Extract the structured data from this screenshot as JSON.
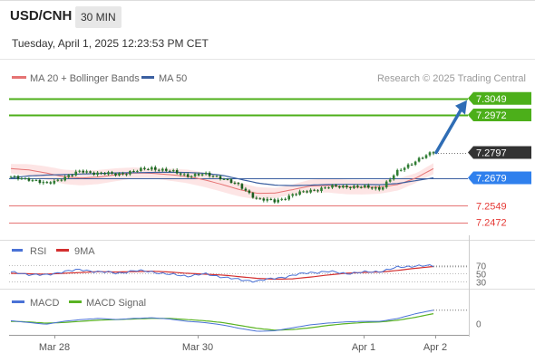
{
  "header": {
    "symbol": "USD/CNH",
    "timeframe": "30 MIN",
    "timestamp": "Tuesday, April 1, 2025 12:23:53 PM CET"
  },
  "legend": {
    "ma20_bb": "MA 20 + Bollinger Bands",
    "ma50": "MA 50",
    "source": "Research © 2025 Trading Central",
    "rsi": "RSI",
    "rsi_ma": "9MA",
    "macd": "MACD",
    "macd_signal": "MACD Signal"
  },
  "colors": {
    "candle": "#2e7d32",
    "ma20": "#e57373",
    "bb_fill": "#fde2e2",
    "ma50": "#3b5fa0",
    "resistance": "#4caf1a",
    "support": "#e57373",
    "current": "#333333",
    "ma50_label": "#2f80ed",
    "forecast": "#2f6db5",
    "rsi": "#4a72d6",
    "rsi_ma": "#d32f2f",
    "macd": "#4a72d6",
    "macd_signal": "#5ab323"
  },
  "chart_data": [
    {
      "type": "candlestick",
      "title": "USD/CNH",
      "x_ticks": [
        "Mar 28",
        "Mar 30",
        "Apr 1",
        "Apr 2"
      ],
      "ylim": [
        7.2445,
        7.3065
      ],
      "series": [
        {
          "name": "MA 20 + Bollinger Bands",
          "values": [
            7.2722,
            7.2716,
            7.2702,
            7.2684,
            7.2678,
            7.2683,
            7.2694,
            7.2702,
            7.27,
            7.2694,
            7.2686,
            7.267,
            7.2648,
            7.2624,
            7.2607,
            7.2608,
            7.2624,
            7.2641,
            7.2643,
            7.2637,
            7.2635,
            7.2637,
            7.2648,
            7.2678,
            7.2722
          ]
        },
        {
          "name": "MA 50",
          "values": [
            7.2679,
            7.2688,
            7.2692,
            7.2694,
            7.2697,
            7.2699,
            7.2702,
            7.2703,
            7.2704,
            7.2705,
            7.2704,
            7.27,
            7.2691,
            7.2673,
            7.2655,
            7.2645,
            7.2643,
            7.2645,
            7.2648,
            7.2649,
            7.2648,
            7.2647,
            7.2653,
            7.2666,
            7.2679
          ]
        }
      ],
      "close": [
        7.268,
        7.2675,
        7.265,
        7.268,
        7.271,
        7.27,
        7.2695,
        7.271,
        7.2725,
        7.271,
        7.269,
        7.2695,
        7.268,
        7.264,
        7.258,
        7.257,
        7.26,
        7.262,
        7.2635,
        7.264,
        7.2635,
        7.263,
        7.271,
        7.276,
        7.2797
      ],
      "resistance": [
        7.3049,
        7.2972
      ],
      "current": 7.2797,
      "ma50_level": 7.2679,
      "support": [
        7.2549,
        7.2472
      ],
      "forecast": {
        "from": 7.2797,
        "to": 7.3049
      }
    },
    {
      "type": "line",
      "title": "RSI",
      "ylim": [
        20,
        80
      ],
      "y_ticks": [
        70,
        50,
        30
      ],
      "series": [
        {
          "name": "RSI",
          "values": [
            52,
            48,
            45,
            55,
            58,
            54,
            50,
            56,
            54,
            47,
            44,
            48,
            42,
            34,
            32,
            38,
            45,
            52,
            54,
            50,
            52,
            55,
            64,
            68,
            67
          ]
        },
        {
          "name": "9MA",
          "values": [
            50,
            49,
            48,
            50,
            52,
            54,
            53,
            54,
            55,
            53,
            50,
            48,
            46,
            42,
            38,
            36,
            37,
            41,
            46,
            50,
            52,
            53,
            57,
            62,
            66
          ]
        }
      ]
    },
    {
      "type": "line",
      "title": "MACD",
      "y_ticks": [
        0
      ],
      "series": [
        {
          "name": "MACD",
          "values": [
            0.0004,
            0.0001,
            -0.0002,
            0.0003,
            0.0006,
            0.0008,
            0.0006,
            0.0008,
            0.0009,
            0.0007,
            0.0003,
            0.0001,
            -0.0003,
            -0.0009,
            -0.0014,
            -0.0013,
            -0.0008,
            -0.0003,
            0.0,
            0.0002,
            0.0003,
            0.0003,
            0.0008,
            0.0016,
            0.0022
          ]
        },
        {
          "name": "MACD Signal",
          "values": [
            0.0003,
            0.0002,
            0.0,
            0.0001,
            0.0003,
            0.0005,
            0.0006,
            0.0007,
            0.0008,
            0.0008,
            0.0006,
            0.0004,
            0.0001,
            -0.0004,
            -0.0009,
            -0.0012,
            -0.0011,
            -0.0008,
            -0.0004,
            -0.0001,
            0.0001,
            0.0002,
            0.0005,
            0.001,
            0.0016
          ]
        }
      ]
    }
  ]
}
